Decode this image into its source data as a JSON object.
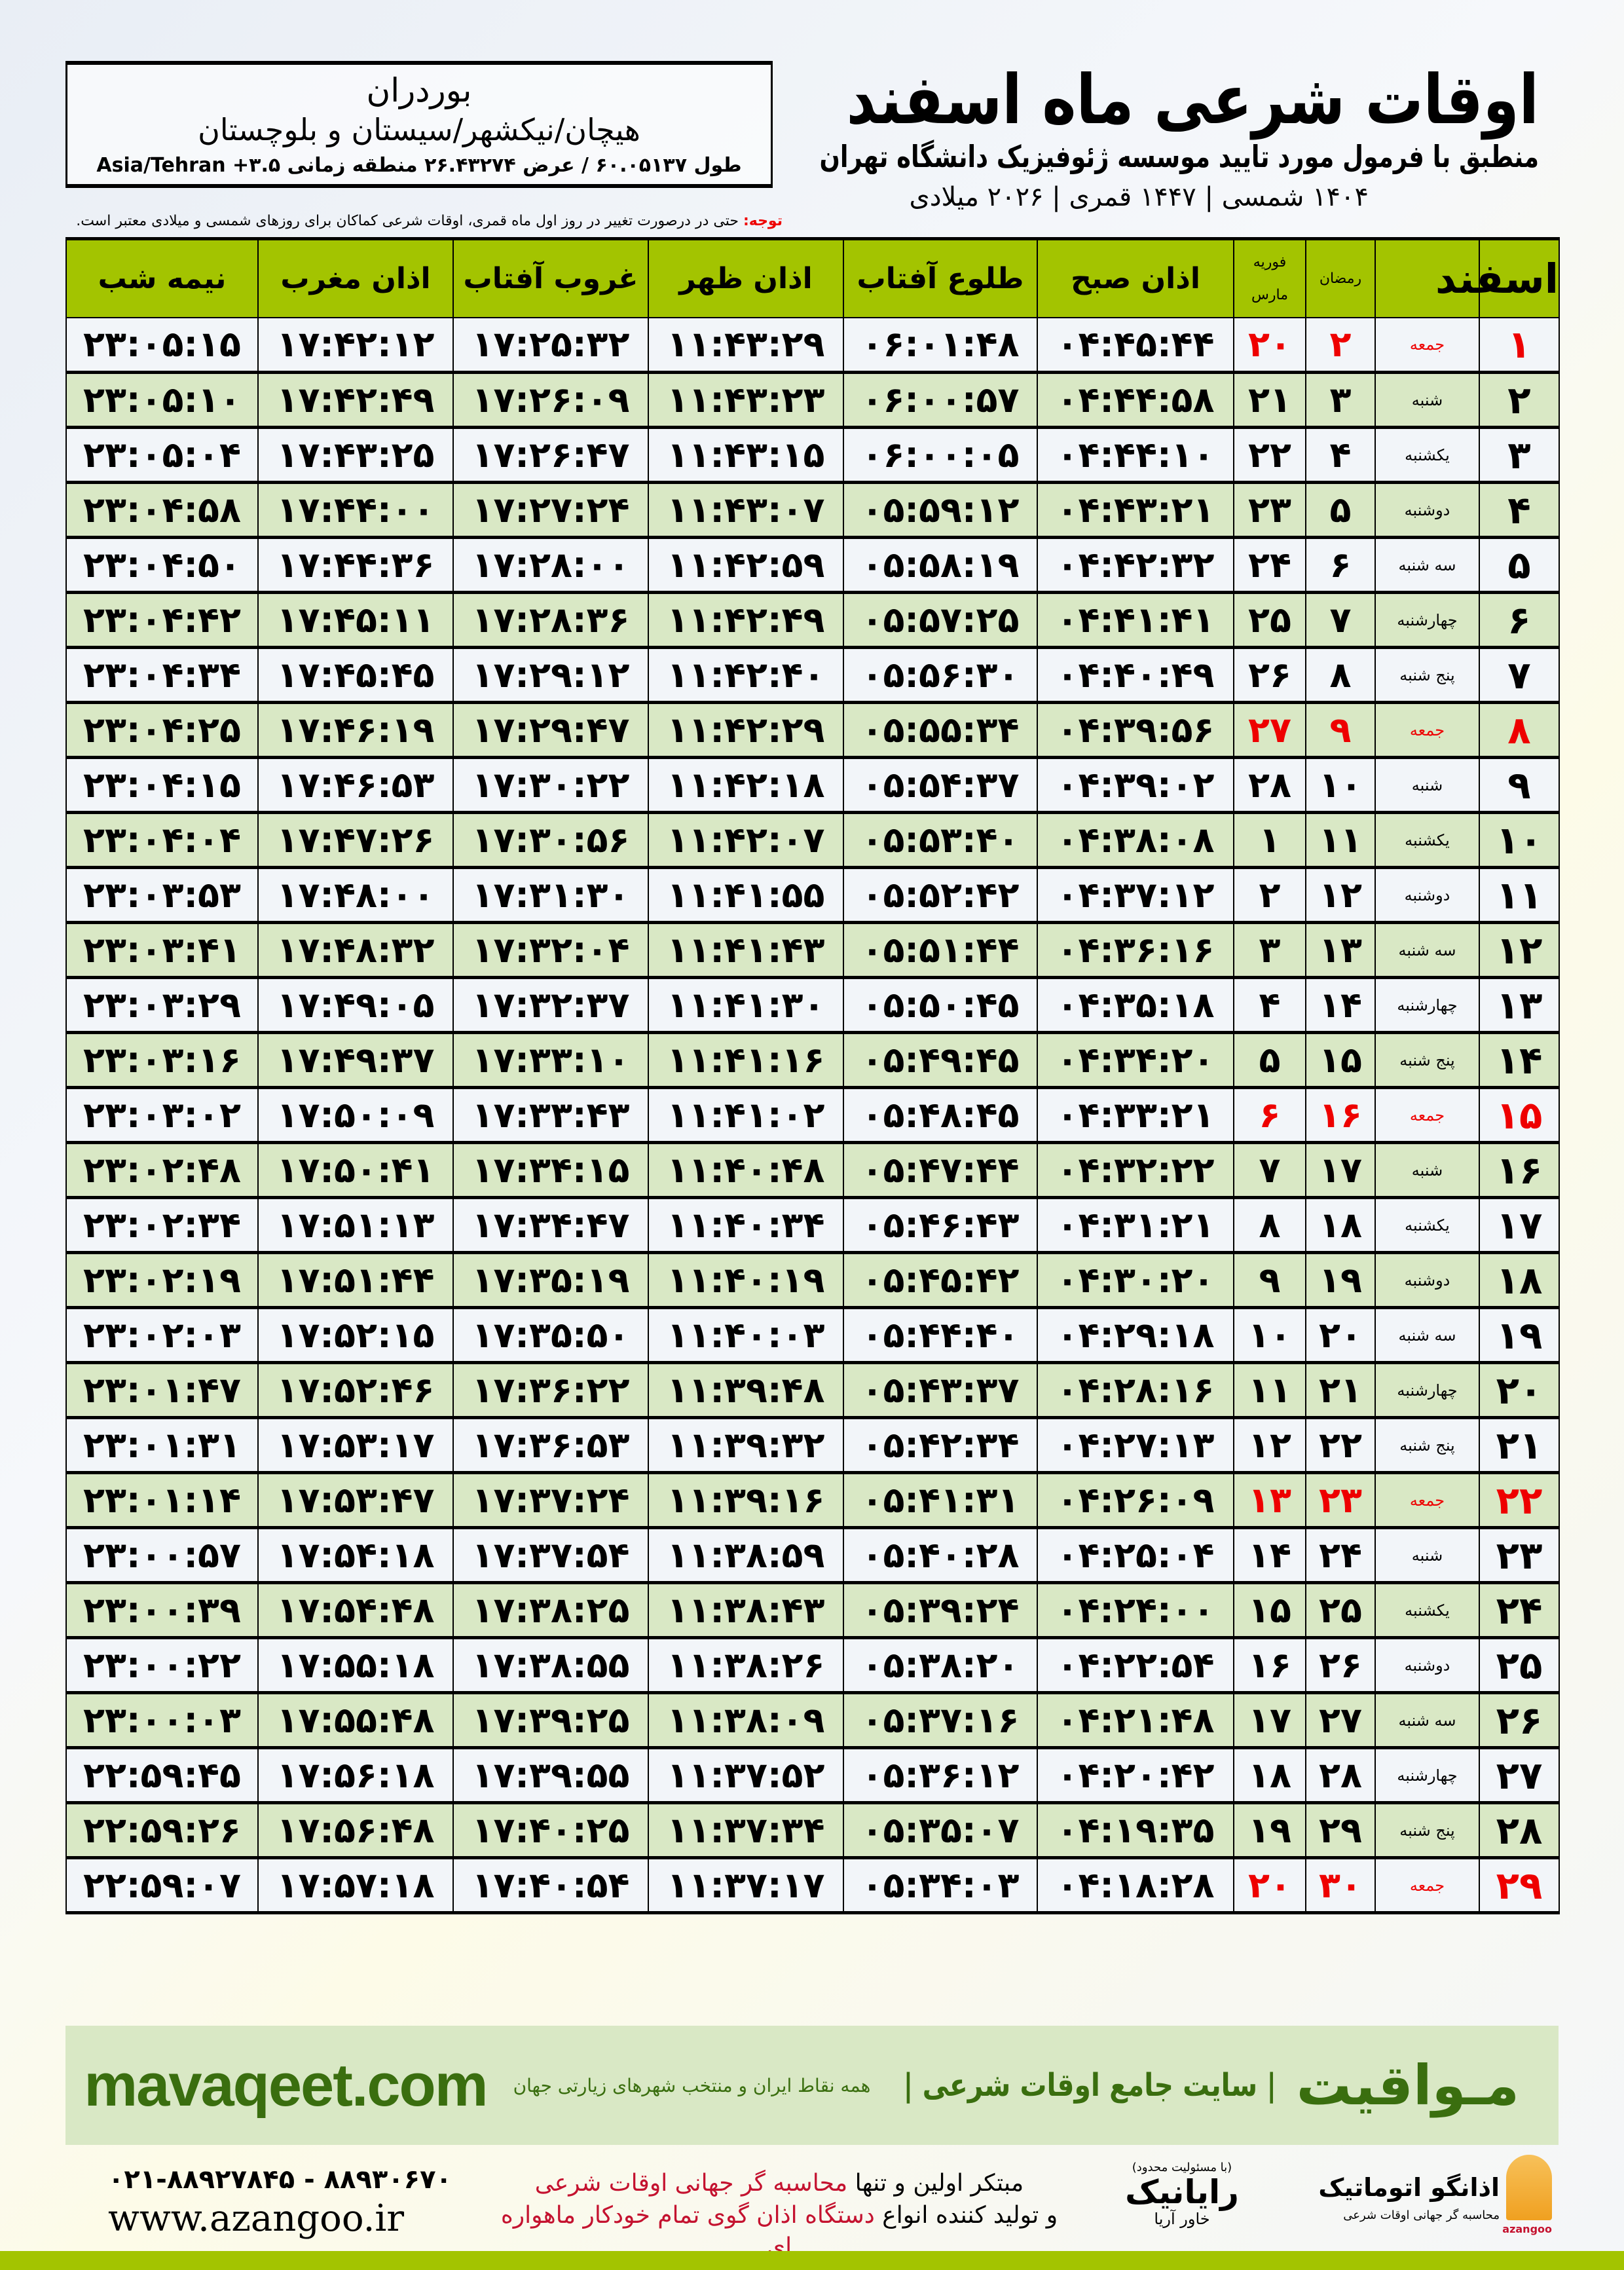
{
  "header": {
    "title": "اوقات شرعی ماه اسفند",
    "subtitle": "منطبق با فرمول مورد تایید موسسه ژئوفیزیک دانشگاه تهران",
    "dateline": "۱۴۰۴ شمسی | ۱۴۴۷ قمری | ۲۰۲۶ میلادی"
  },
  "location": {
    "city": "بوردران",
    "region": "هیچان/نیکشهر/سیستان و بلوچستان",
    "coords": "طول ۶۰.۰۵۱۳۷ / عرض ۲۶.۴۳۲۷۴ منطقه زمانی ۳.۵+ Asia/Tehran"
  },
  "note": {
    "label": "توجه:",
    "text": " حتی در درصورت تغییر در روز اول ماه قمری، اوقات شرعی کماکان برای روزهای شمسی و میلادی معتبر است."
  },
  "table": {
    "headers": {
      "month": "اسفند",
      "ramadan": "رمضان",
      "greg1": "فوریه",
      "greg2": "مارس",
      "fajr": "اذان صبح",
      "sunrise": "طلوع آفتاب",
      "dhuhr": "اذان ظهر",
      "sunset": "غروب آفتاب",
      "maghrib": "اذان مغرب",
      "midnight": "نیمه شب"
    },
    "colors": {
      "header": "#a3c400",
      "even_row": "#d9e8c5",
      "holiday": "#ee0000"
    },
    "rows": [
      [
        "۱",
        "جمعه",
        "۲",
        "۲۰",
        "۰۴:۴۵:۴۴",
        "۰۶:۰۱:۴۸",
        "۱۱:۴۳:۲۹",
        "۱۷:۲۵:۳۲",
        "۱۷:۴۲:۱۲",
        "۲۳:۰۵:۱۵",
        true
      ],
      [
        "۲",
        "شنبه",
        "۳",
        "۲۱",
        "۰۴:۴۴:۵۸",
        "۰۶:۰۰:۵۷",
        "۱۱:۴۳:۲۳",
        "۱۷:۲۶:۰۹",
        "۱۷:۴۲:۴۹",
        "۲۳:۰۵:۱۰",
        false
      ],
      [
        "۳",
        "یکشنبه",
        "۴",
        "۲۲",
        "۰۴:۴۴:۱۰",
        "۰۶:۰۰:۰۵",
        "۱۱:۴۳:۱۵",
        "۱۷:۲۶:۴۷",
        "۱۷:۴۳:۲۵",
        "۲۳:۰۵:۰۴",
        false
      ],
      [
        "۴",
        "دوشنبه",
        "۵",
        "۲۳",
        "۰۴:۴۳:۲۱",
        "۰۵:۵۹:۱۲",
        "۱۱:۴۳:۰۷",
        "۱۷:۲۷:۲۴",
        "۱۷:۴۴:۰۰",
        "۲۳:۰۴:۵۸",
        false
      ],
      [
        "۵",
        "سه شنبه",
        "۶",
        "۲۴",
        "۰۴:۴۲:۳۲",
        "۰۵:۵۸:۱۹",
        "۱۱:۴۲:۵۹",
        "۱۷:۲۸:۰۰",
        "۱۷:۴۴:۳۶",
        "۲۳:۰۴:۵۰",
        false
      ],
      [
        "۶",
        "چهارشنبه",
        "۷",
        "۲۵",
        "۰۴:۴۱:۴۱",
        "۰۵:۵۷:۲۵",
        "۱۱:۴۲:۴۹",
        "۱۷:۲۸:۳۶",
        "۱۷:۴۵:۱۱",
        "۲۳:۰۴:۴۲",
        false
      ],
      [
        "۷",
        "پنج شنبه",
        "۸",
        "۲۶",
        "۰۴:۴۰:۴۹",
        "۰۵:۵۶:۳۰",
        "۱۱:۴۲:۴۰",
        "۱۷:۲۹:۱۲",
        "۱۷:۴۵:۴۵",
        "۲۳:۰۴:۳۴",
        false
      ],
      [
        "۸",
        "جمعه",
        "۹",
        "۲۷",
        "۰۴:۳۹:۵۶",
        "۰۵:۵۵:۳۴",
        "۱۱:۴۲:۲۹",
        "۱۷:۲۹:۴۷",
        "۱۷:۴۶:۱۹",
        "۲۳:۰۴:۲۵",
        true
      ],
      [
        "۹",
        "شنبه",
        "۱۰",
        "۲۸",
        "۰۴:۳۹:۰۲",
        "۰۵:۵۴:۳۷",
        "۱۱:۴۲:۱۸",
        "۱۷:۳۰:۲۲",
        "۱۷:۴۶:۵۳",
        "۲۳:۰۴:۱۵",
        false
      ],
      [
        "۱۰",
        "یکشنبه",
        "۱۱",
        "۱",
        "۰۴:۳۸:۰۸",
        "۰۵:۵۳:۴۰",
        "۱۱:۴۲:۰۷",
        "۱۷:۳۰:۵۶",
        "۱۷:۴۷:۲۶",
        "۲۳:۰۴:۰۴",
        false
      ],
      [
        "۱۱",
        "دوشنبه",
        "۱۲",
        "۲",
        "۰۴:۳۷:۱۲",
        "۰۵:۵۲:۴۲",
        "۱۱:۴۱:۵۵",
        "۱۷:۳۱:۳۰",
        "۱۷:۴۸:۰۰",
        "۲۳:۰۳:۵۳",
        false
      ],
      [
        "۱۲",
        "سه شنبه",
        "۱۳",
        "۳",
        "۰۴:۳۶:۱۶",
        "۰۵:۵۱:۴۴",
        "۱۱:۴۱:۴۳",
        "۱۷:۳۲:۰۴",
        "۱۷:۴۸:۳۲",
        "۲۳:۰۳:۴۱",
        false
      ],
      [
        "۱۳",
        "چهارشنبه",
        "۱۴",
        "۴",
        "۰۴:۳۵:۱۸",
        "۰۵:۵۰:۴۵",
        "۱۱:۴۱:۳۰",
        "۱۷:۳۲:۳۷",
        "۱۷:۴۹:۰۵",
        "۲۳:۰۳:۲۹",
        false
      ],
      [
        "۱۴",
        "پنج شنبه",
        "۱۵",
        "۵",
        "۰۴:۳۴:۲۰",
        "۰۵:۴۹:۴۵",
        "۱۱:۴۱:۱۶",
        "۱۷:۳۳:۱۰",
        "۱۷:۴۹:۳۷",
        "۲۳:۰۳:۱۶",
        false
      ],
      [
        "۱۵",
        "جمعه",
        "۱۶",
        "۶",
        "۰۴:۳۳:۲۱",
        "۰۵:۴۸:۴۵",
        "۱۱:۴۱:۰۲",
        "۱۷:۳۳:۴۳",
        "۱۷:۵۰:۰۹",
        "۲۳:۰۳:۰۲",
        true
      ],
      [
        "۱۶",
        "شنبه",
        "۱۷",
        "۷",
        "۰۴:۳۲:۲۲",
        "۰۵:۴۷:۴۴",
        "۱۱:۴۰:۴۸",
        "۱۷:۳۴:۱۵",
        "۱۷:۵۰:۴۱",
        "۲۳:۰۲:۴۸",
        false
      ],
      [
        "۱۷",
        "یکشنبه",
        "۱۸",
        "۸",
        "۰۴:۳۱:۲۱",
        "۰۵:۴۶:۴۳",
        "۱۱:۴۰:۳۴",
        "۱۷:۳۴:۴۷",
        "۱۷:۵۱:۱۳",
        "۲۳:۰۲:۳۴",
        false
      ],
      [
        "۱۸",
        "دوشنبه",
        "۱۹",
        "۹",
        "۰۴:۳۰:۲۰",
        "۰۵:۴۵:۴۲",
        "۱۱:۴۰:۱۹",
        "۱۷:۳۵:۱۹",
        "۱۷:۵۱:۴۴",
        "۲۳:۰۲:۱۹",
        false
      ],
      [
        "۱۹",
        "سه شنبه",
        "۲۰",
        "۱۰",
        "۰۴:۲۹:۱۸",
        "۰۵:۴۴:۴۰",
        "۱۱:۴۰:۰۳",
        "۱۷:۳۵:۵۰",
        "۱۷:۵۲:۱۵",
        "۲۳:۰۲:۰۳",
        false
      ],
      [
        "۲۰",
        "چهارشنبه",
        "۲۱",
        "۱۱",
        "۰۴:۲۸:۱۶",
        "۰۵:۴۳:۳۷",
        "۱۱:۳۹:۴۸",
        "۱۷:۳۶:۲۲",
        "۱۷:۵۲:۴۶",
        "۲۳:۰۱:۴۷",
        false
      ],
      [
        "۲۱",
        "پنج شنبه",
        "۲۲",
        "۱۲",
        "۰۴:۲۷:۱۳",
        "۰۵:۴۲:۳۴",
        "۱۱:۳۹:۳۲",
        "۱۷:۳۶:۵۳",
        "۱۷:۵۳:۱۷",
        "۲۳:۰۱:۳۱",
        false
      ],
      [
        "۲۲",
        "جمعه",
        "۲۳",
        "۱۳",
        "۰۴:۲۶:۰۹",
        "۰۵:۴۱:۳۱",
        "۱۱:۳۹:۱۶",
        "۱۷:۳۷:۲۴",
        "۱۷:۵۳:۴۷",
        "۲۳:۰۱:۱۴",
        true
      ],
      [
        "۲۳",
        "شنبه",
        "۲۴",
        "۱۴",
        "۰۴:۲۵:۰۴",
        "۰۵:۴۰:۲۸",
        "۱۱:۳۸:۵۹",
        "۱۷:۳۷:۵۴",
        "۱۷:۵۴:۱۸",
        "۲۳:۰۰:۵۷",
        false
      ],
      [
        "۲۴",
        "یکشنبه",
        "۲۵",
        "۱۵",
        "۰۴:۲۴:۰۰",
        "۰۵:۳۹:۲۴",
        "۱۱:۳۸:۴۳",
        "۱۷:۳۸:۲۵",
        "۱۷:۵۴:۴۸",
        "۲۳:۰۰:۳۹",
        false
      ],
      [
        "۲۵",
        "دوشنبه",
        "۲۶",
        "۱۶",
        "۰۴:۲۲:۵۴",
        "۰۵:۳۸:۲۰",
        "۱۱:۳۸:۲۶",
        "۱۷:۳۸:۵۵",
        "۱۷:۵۵:۱۸",
        "۲۳:۰۰:۲۲",
        false
      ],
      [
        "۲۶",
        "سه شنبه",
        "۲۷",
        "۱۷",
        "۰۴:۲۱:۴۸",
        "۰۵:۳۷:۱۶",
        "۱۱:۳۸:۰۹",
        "۱۷:۳۹:۲۵",
        "۱۷:۵۵:۴۸",
        "۲۳:۰۰:۰۳",
        false
      ],
      [
        "۲۷",
        "چهارشنبه",
        "۲۸",
        "۱۸",
        "۰۴:۲۰:۴۲",
        "۰۵:۳۶:۱۲",
        "۱۱:۳۷:۵۲",
        "۱۷:۳۹:۵۵",
        "۱۷:۵۶:۱۸",
        "۲۲:۵۹:۴۵",
        false
      ],
      [
        "۲۸",
        "پنج شنبه",
        "۲۹",
        "۱۹",
        "۰۴:۱۹:۳۵",
        "۰۵:۳۵:۰۷",
        "۱۱:۳۷:۳۴",
        "۱۷:۴۰:۲۵",
        "۱۷:۵۶:۴۸",
        "۲۲:۵۹:۲۶",
        false
      ],
      [
        "۲۹",
        "جمعه",
        "۳۰",
        "۲۰",
        "۰۴:۱۸:۲۸",
        "۰۵:۳۴:۰۳",
        "۱۱:۳۷:۱۷",
        "۱۷:۴۰:۵۴",
        "۱۷:۵۷:۱۸",
        "۲۲:۵۹:۰۷",
        true
      ]
    ]
  },
  "banner": {
    "brand": "مـواقیت",
    "tagline": "| سایت جامع اوقات شرعی |",
    "sub": "همه نقاط ایران و منتخب شهرهای زیارتی جهان",
    "site": "mavaqeet.com"
  },
  "footer": {
    "phone": "۰۲۱-۸۸۹۲۷۸۴۵ - ۸۸۹۳۰۶۷۰",
    "web": "www.azangoo.ir",
    "promo1a": "مبتکر اولین و تنها ",
    "promo1b": "محاسبه گر جهانی اوقات شرعی",
    "promo2a": "و تولید کننده انواع ",
    "promo2b": "دستگاه اذان گوی تمام خودکار ماهواره ای",
    "rayanik_small": "(با مسئولیت محدود)",
    "rayanik": "رایانیک",
    "rayanik_sub": "خاور آریا",
    "azangoo": "اذانگو اتوماتیک",
    "azangoo_sub": "محاسبه گر جهانی اوقات شرعی",
    "azangoo_en": "azangoo"
  }
}
